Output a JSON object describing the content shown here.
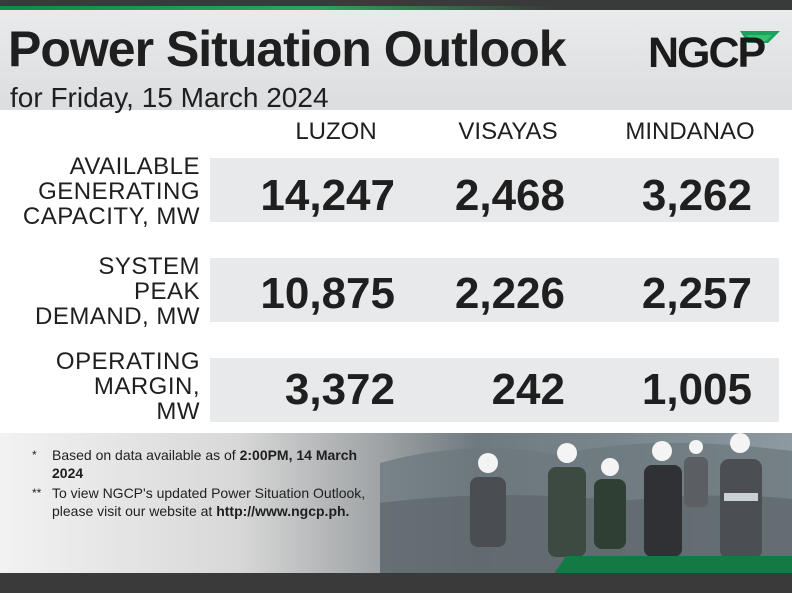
{
  "header": {
    "title": "Power Situation Outlook",
    "subtitle": "for Friday, 15 March 2024",
    "logo_text": "NGCP"
  },
  "columns": [
    "LUZON",
    "VISAYAS",
    "MINDANAO"
  ],
  "rows": [
    {
      "label_lines": [
        "AVAILABLE",
        "GENERATING",
        "CAPACITY, MW"
      ],
      "values": [
        "14,247",
        "2,468",
        "3,262"
      ]
    },
    {
      "label_lines": [
        "SYSTEM",
        "PEAK",
        "DEMAND, MW"
      ],
      "values": [
        "10,875",
        "2,226",
        "2,257"
      ]
    },
    {
      "label_lines": [
        "OPERATING",
        "MARGIN,",
        "MW"
      ],
      "values": [
        "3,372",
        "242",
        "1,005"
      ]
    }
  ],
  "footer": {
    "note1_mark": "*",
    "note1_text": "Based on data available as of ",
    "note1_bold": "2:00PM, 14 March 2024",
    "note2_mark": "**",
    "note2_text": "To view NGCP's updated Power Situation Outlook, please visit our website at ",
    "note2_bold": "http://www.ngcp.ph."
  },
  "colors": {
    "accent_green": "#137a46",
    "dark_bar": "#3a3a3a",
    "band_gray": "#e8e9ea"
  }
}
